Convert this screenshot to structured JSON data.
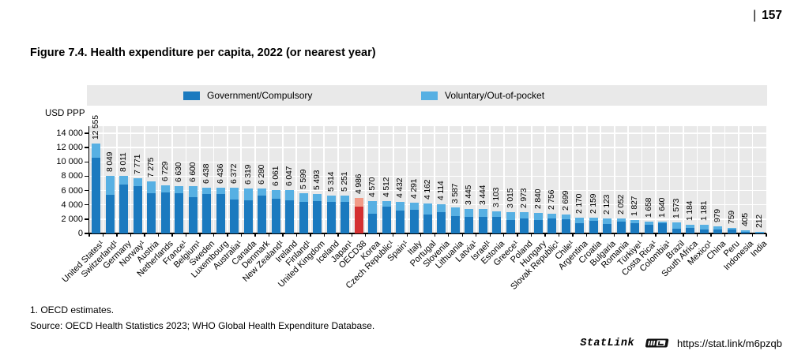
{
  "page": {
    "separator": "|",
    "number": "157"
  },
  "figure": {
    "title": "Figure 7.4. Health expenditure per capita, 2022 (or nearest year)"
  },
  "legend": {
    "government": "Government/Compulsory",
    "voluntary": "Voluntary/Out-of-pocket"
  },
  "footnotes": [
    "1. OECD estimates.",
    "Source: OECD Health Statistics 2023; WHO Global Health Expenditure Database."
  ],
  "statlink": {
    "brand": "StatLink",
    "url": "https://stat.link/m6pzqb"
  },
  "colors": {
    "government": "#1b7abf",
    "voluntary": "#57b0e3",
    "oecd_government": "#d43031",
    "oecd_voluntary": "#f29b87",
    "plot_background": "#e9e9e9"
  },
  "chart_data": {
    "type": "bar",
    "stacked": true,
    "title": "Figure 7.4. Health expenditure per capita, 2022 (or nearest year)",
    "ylabel": "USD PPP",
    "xlabel": "",
    "ylim": [
      0,
      14000
    ],
    "ytick_step": 2000,
    "ytick_labels": [
      "0",
      "2 000",
      "4 000",
      "6 000",
      "8 000",
      "10 000",
      "12 000",
      "14 000"
    ],
    "grid": true,
    "legend_position": "top",
    "series_names": [
      "Government/Compulsory",
      "Voluntary/Out-of-pocket"
    ],
    "note": "government values estimated from bar splits; voluntary = total - government",
    "highlighted_category": "OECD38",
    "bars": [
      {
        "country": "United States¹",
        "value_label": "12 555",
        "total": 12555,
        "government": 10600
      },
      {
        "country": "Switzerland¹",
        "value_label": "8 049",
        "total": 8049,
        "government": 5450
      },
      {
        "country": "Germany",
        "value_label": "8 011",
        "total": 8011,
        "government": 6820
      },
      {
        "country": "Norway¹",
        "value_label": "7 771",
        "total": 7771,
        "government": 6640
      },
      {
        "country": "Austria",
        "value_label": "7 275",
        "total": 7275,
        "government": 5600
      },
      {
        "country": "Netherlands",
        "value_label": "6 729",
        "total": 6729,
        "government": 5750
      },
      {
        "country": "France¹",
        "value_label": "6 630",
        "total": 6630,
        "government": 5650
      },
      {
        "country": "Belgium¹",
        "value_label": "6 600",
        "total": 6600,
        "government": 5110
      },
      {
        "country": "Sweden",
        "value_label": "6 438",
        "total": 6438,
        "government": 5510
      },
      {
        "country": "Luxembourg",
        "value_label": "6 436",
        "total": 6436,
        "government": 5520
      },
      {
        "country": "Australia¹",
        "value_label": "6 372",
        "total": 6372,
        "government": 4690
      },
      {
        "country": "Canada",
        "value_label": "6 319",
        "total": 6319,
        "government": 4580
      },
      {
        "country": "Denmark",
        "value_label": "6 280",
        "total": 6280,
        "government": 5250
      },
      {
        "country": "New Zealand¹",
        "value_label": "6 061",
        "total": 6061,
        "government": 4820
      },
      {
        "country": "Ireland",
        "value_label": "6 047",
        "total": 6047,
        "government": 4640
      },
      {
        "country": "Finland¹",
        "value_label": "5 599",
        "total": 5599,
        "government": 4400
      },
      {
        "country": "United Kingdom",
        "value_label": "5 493",
        "total": 5493,
        "government": 4540
      },
      {
        "country": "Iceland",
        "value_label": "5 314",
        "total": 5314,
        "government": 4410
      },
      {
        "country": "Japan¹",
        "value_label": "5 251",
        "total": 5251,
        "government": 4460
      },
      {
        "country": "OECD38",
        "value_label": "4 986",
        "total": 4986,
        "government": 3790,
        "highlight": true
      },
      {
        "country": "Korea",
        "value_label": "4 570",
        "total": 4570,
        "government": 2810
      },
      {
        "country": "Czech Republic¹",
        "value_label": "4 512",
        "total": 4512,
        "government": 3800
      },
      {
        "country": "Spain¹",
        "value_label": "4 432",
        "total": 4432,
        "government": 3170
      },
      {
        "country": "Italy",
        "value_label": "4 291",
        "total": 4291,
        "government": 3270
      },
      {
        "country": "Portugal",
        "value_label": "4 162",
        "total": 4162,
        "government": 2670
      },
      {
        "country": "Slovenia",
        "value_label": "4 114",
        "total": 4114,
        "government": 2990
      },
      {
        "country": "Lithuania",
        "value_label": "3 587",
        "total": 3587,
        "government": 2420
      },
      {
        "country": "Latvia¹",
        "value_label": "3 445",
        "total": 3445,
        "government": 2330
      },
      {
        "country": "Israel¹",
        "value_label": "3 444",
        "total": 3444,
        "government": 2340
      },
      {
        "country": "Estonia",
        "value_label": "3 103",
        "total": 3103,
        "government": 2310
      },
      {
        "country": "Greece¹",
        "value_label": "3 015",
        "total": 3015,
        "government": 1860
      },
      {
        "country": "Poland",
        "value_label": "2 973",
        "total": 2973,
        "government": 2150
      },
      {
        "country": "Hungary",
        "value_label": "2 840",
        "total": 2840,
        "government": 1910
      },
      {
        "country": "Slovak Republic¹",
        "value_label": "2 756",
        "total": 2756,
        "government": 2100
      },
      {
        "country": "Chile¹",
        "value_label": "2 699",
        "total": 2699,
        "government": 1950
      },
      {
        "country": "Argentina",
        "value_label": "2 170",
        "total": 2170,
        "government": 1470
      },
      {
        "country": "Croatia",
        "value_label": "2 159",
        "total": 2159,
        "government": 1790
      },
      {
        "country": "Bulgaria",
        "value_label": "2 123",
        "total": 2123,
        "government": 1270
      },
      {
        "country": "Romania",
        "value_label": "2 052",
        "total": 2052,
        "government": 1640
      },
      {
        "country": "Türkiye¹",
        "value_label": "1 827",
        "total": 1827,
        "government": 1430
      },
      {
        "country": "Costa Rica¹",
        "value_label": "1 658",
        "total": 1658,
        "government": 1190
      },
      {
        "country": "Colombia¹",
        "value_label": "1 640",
        "total": 1640,
        "government": 1400
      },
      {
        "country": "Brazil",
        "value_label": "1 573",
        "total": 1573,
        "government": 710
      },
      {
        "country": "South Africa",
        "value_label": "1 184",
        "total": 1184,
        "government": 780
      },
      {
        "country": "Mexico¹",
        "value_label": "1 181",
        "total": 1181,
        "government": 580
      },
      {
        "country": "China",
        "value_label": "979",
        "total": 979,
        "government": 550
      },
      {
        "country": "Peru",
        "value_label": "759",
        "total": 759,
        "government": 520
      },
      {
        "country": "Indonesia",
        "value_label": "405",
        "total": 405,
        "government": 260
      },
      {
        "country": "India",
        "value_label": "212",
        "total": 212,
        "government": 80
      }
    ]
  }
}
